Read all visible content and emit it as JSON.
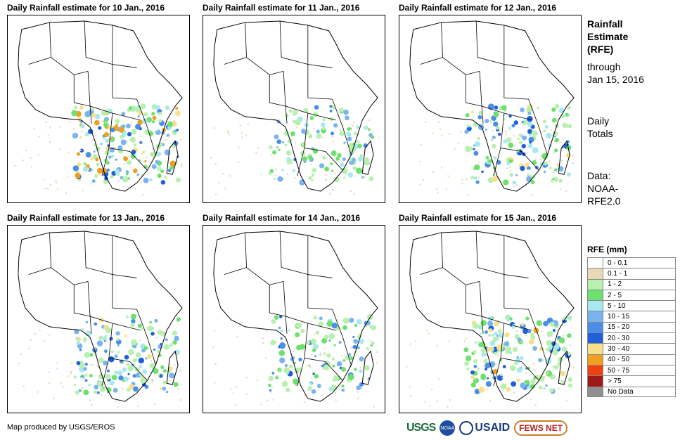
{
  "panels": [
    {
      "title": "Daily Rainfall estimate for 10 Jan., 2016",
      "intensity": 0.9
    },
    {
      "title": "Daily Rainfall estimate for 11 Jan., 2016",
      "intensity": 0.55
    },
    {
      "title": "Daily Rainfall estimate for 12 Jan., 2016",
      "intensity": 0.7
    },
    {
      "title": "Daily Rainfall estimate for 13 Jan., 2016",
      "intensity": 0.75
    },
    {
      "title": "Daily Rainfall estimate for 14 Jan., 2016",
      "intensity": 0.6
    },
    {
      "title": "Daily Rainfall estimate for 15 Jan., 2016",
      "intensity": 0.8
    }
  ],
  "side": {
    "title_line1": "Rainfall",
    "title_line2": "Estimate",
    "title_line3": "(RFE)",
    "through_label": "through",
    "through_date": "Jan 15, 2016",
    "totals_line1": "Daily",
    "totals_line2": "Totals",
    "data_line1": "Data:",
    "data_line2": "NOAA-",
    "data_line3": "RFE2.0"
  },
  "legend": {
    "title": "RFE (mm)",
    "items": [
      {
        "label": "0 - 0.1",
        "color": "#ffffff"
      },
      {
        "label": "0.1 - 1",
        "color": "#e8d8b8"
      },
      {
        "label": "1 - 2",
        "color": "#b8f0b0"
      },
      {
        "label": "2 - 5",
        "color": "#6ee06e"
      },
      {
        "label": "5 - 10",
        "color": "#a8e8f0"
      },
      {
        "label": "10 - 15",
        "color": "#7ab4f0"
      },
      {
        "label": "15 - 20",
        "color": "#4a8ee8"
      },
      {
        "label": "20 - 30",
        "color": "#1f5fd8"
      },
      {
        "label": "30 - 40",
        "color": "#f8e08a"
      },
      {
        "label": "40 - 50",
        "color": "#f0a020"
      },
      {
        "label": "50 - 75",
        "color": "#f04010"
      },
      {
        "label": "> 75",
        "color": "#a01818"
      },
      {
        "label": "No Data",
        "color": "#909090"
      }
    ]
  },
  "credit": "Map produced by USGS/EROS",
  "logos": {
    "usgs": "USGS",
    "noaa": "NOAA",
    "usaid": "USAID",
    "fews": "FEWS NET"
  }
}
